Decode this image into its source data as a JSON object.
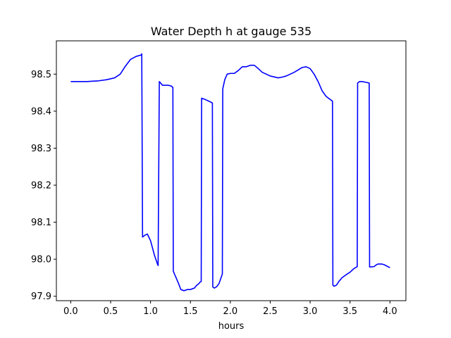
{
  "chart_data": {
    "type": "line",
    "title": "Water Depth h at gauge 535",
    "xlabel": "hours",
    "ylabel": "",
    "xlim": [
      -0.18,
      4.2
    ],
    "ylim": [
      97.888,
      98.59
    ],
    "xticks": [
      0.0,
      0.5,
      1.0,
      1.5,
      2.0,
      2.5,
      3.0,
      3.5,
      4.0
    ],
    "xtick_labels": [
      "0.0",
      "0.5",
      "1.0",
      "1.5",
      "2.0",
      "2.5",
      "3.0",
      "3.5",
      "4.0"
    ],
    "yticks": [
      97.9,
      98.0,
      98.1,
      98.2,
      98.3,
      98.4,
      98.5
    ],
    "ytick_labels": [
      "97.9",
      "98.0",
      "98.1",
      "98.2",
      "98.3",
      "98.4",
      "98.5"
    ],
    "grid": false,
    "series": [
      {
        "color": "#0000ff",
        "x": [
          0.0,
          0.2,
          0.35,
          0.45,
          0.55,
          0.62,
          0.68,
          0.75,
          0.82,
          0.885,
          0.89,
          0.9,
          0.93,
          0.96,
          1.0,
          1.05,
          1.09,
          1.095,
          1.11,
          1.15,
          1.22,
          1.26,
          1.28,
          1.285,
          1.3,
          1.35,
          1.38,
          1.42,
          1.46,
          1.5,
          1.52,
          1.55,
          1.58,
          1.6,
          1.62,
          1.635,
          1.64,
          1.68,
          1.72,
          1.76,
          1.775,
          1.78,
          1.8,
          1.83,
          1.86,
          1.88,
          1.9,
          1.905,
          1.93,
          1.96,
          2.0,
          2.05,
          2.1,
          2.15,
          2.2,
          2.25,
          2.3,
          2.35,
          2.4,
          2.5,
          2.6,
          2.65,
          2.7,
          2.8,
          2.9,
          2.95,
          3.0,
          3.05,
          3.1,
          3.15,
          3.2,
          3.28,
          3.285,
          3.3,
          3.33,
          3.36,
          3.4,
          3.45,
          3.5,
          3.55,
          3.59,
          3.595,
          3.62,
          3.65,
          3.7,
          3.74,
          3.745,
          3.8,
          3.83,
          3.85,
          3.88,
          3.9,
          3.93,
          4.0
        ],
        "y": [
          98.48,
          98.48,
          98.482,
          98.485,
          98.49,
          98.5,
          98.52,
          98.54,
          98.548,
          98.552,
          98.555,
          98.06,
          98.065,
          98.068,
          98.05,
          98.01,
          97.985,
          97.983,
          98.48,
          98.47,
          98.47,
          98.468,
          98.464,
          97.968,
          97.96,
          97.935,
          97.918,
          97.915,
          97.918,
          97.918,
          97.92,
          97.922,
          97.93,
          97.933,
          97.938,
          97.94,
          98.435,
          98.432,
          98.428,
          98.424,
          98.422,
          97.925,
          97.922,
          97.926,
          97.935,
          97.948,
          97.96,
          98.46,
          98.485,
          98.5,
          98.502,
          98.502,
          98.51,
          98.52,
          98.52,
          98.524,
          98.524,
          98.515,
          98.505,
          98.495,
          98.49,
          98.492,
          98.495,
          98.505,
          98.518,
          98.52,
          98.515,
          98.5,
          98.48,
          98.455,
          98.44,
          98.427,
          97.93,
          97.927,
          97.93,
          97.94,
          97.95,
          97.958,
          97.965,
          97.975,
          97.98,
          98.476,
          98.48,
          98.48,
          98.478,
          98.476,
          97.979,
          97.98,
          97.985,
          97.987,
          97.987,
          97.987,
          97.985,
          97.977
        ]
      }
    ]
  }
}
